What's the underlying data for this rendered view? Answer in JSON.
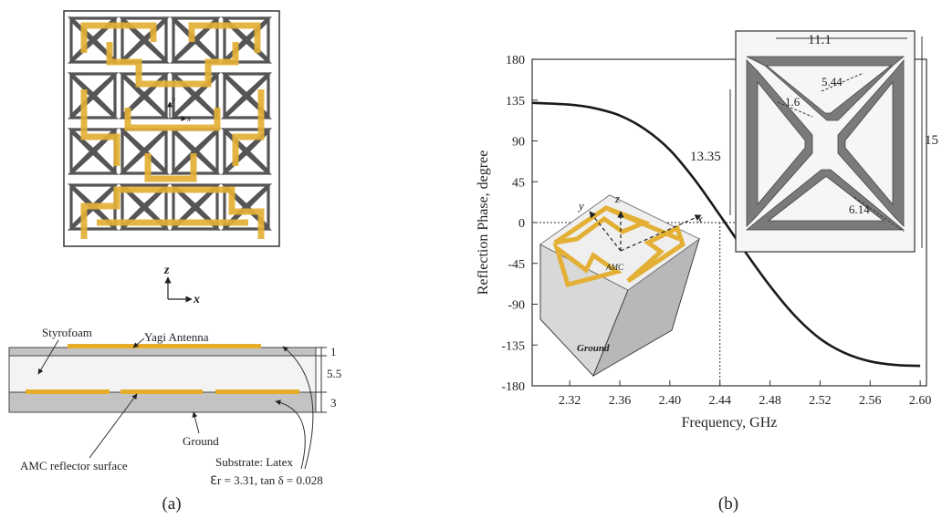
{
  "left_panel": {
    "top_axes": {
      "y": "y",
      "x": "x"
    },
    "cross_section": {
      "axis_z": "z",
      "axis_x": "x",
      "styrofoam_label": "Styrofoam",
      "yagi_label": "Yagi Antenna",
      "ground_label": "Ground",
      "amc_label": "AMC reflector surface",
      "substrate_label": "Substrate: Latex",
      "substrate_props": "ℇr = 3.31, tan δ = 0.028",
      "dims": [
        "1",
        "5.5",
        "3"
      ]
    },
    "caption": "(a)"
  },
  "chart_data": {
    "type": "line",
    "xlabel": "Frequency, GHz",
    "ylabel": "Reflection Phase, degree",
    "xlim": [
      2.29,
      2.605
    ],
    "ylim": [
      -180,
      180
    ],
    "x_ticks": [
      "2.32",
      "2.36",
      "2.40",
      "2.44",
      "2.48",
      "2.52",
      "2.56",
      "2.60"
    ],
    "y_ticks": [
      "180",
      "135",
      "90",
      "45",
      "0",
      "-45",
      "-90",
      "-135",
      "-180"
    ],
    "series": [
      {
        "x": [
          2.29,
          2.32,
          2.34,
          2.36,
          2.38,
          2.4,
          2.42,
          2.44,
          2.45,
          2.46,
          2.48,
          2.5,
          2.52,
          2.54,
          2.56,
          2.58,
          2.6
        ],
        "y": [
          132,
          130,
          126,
          118,
          103,
          80,
          47,
          8,
          -12,
          -32,
          -70,
          -103,
          -128,
          -144,
          -153,
          -157,
          -158
        ]
      }
    ],
    "marker_lines": {
      "x": 2.44,
      "y": 0
    },
    "grid": false,
    "inset_unit_cell": {
      "dims": [
        "11.1",
        "5.44",
        "1.6",
        "13.35",
        "15",
        "6.14"
      ]
    },
    "inset_3d": {
      "axis_z": "z",
      "axis_y": "y",
      "axis_x": "x",
      "amc_label": "AMC",
      "ground_label": "Ground"
    }
  },
  "right_caption": "(b)",
  "colors": {
    "gold": "#e8b030",
    "metal": "#666666",
    "substrate": "#c9c9c9",
    "curve": "#1a1a1a"
  }
}
